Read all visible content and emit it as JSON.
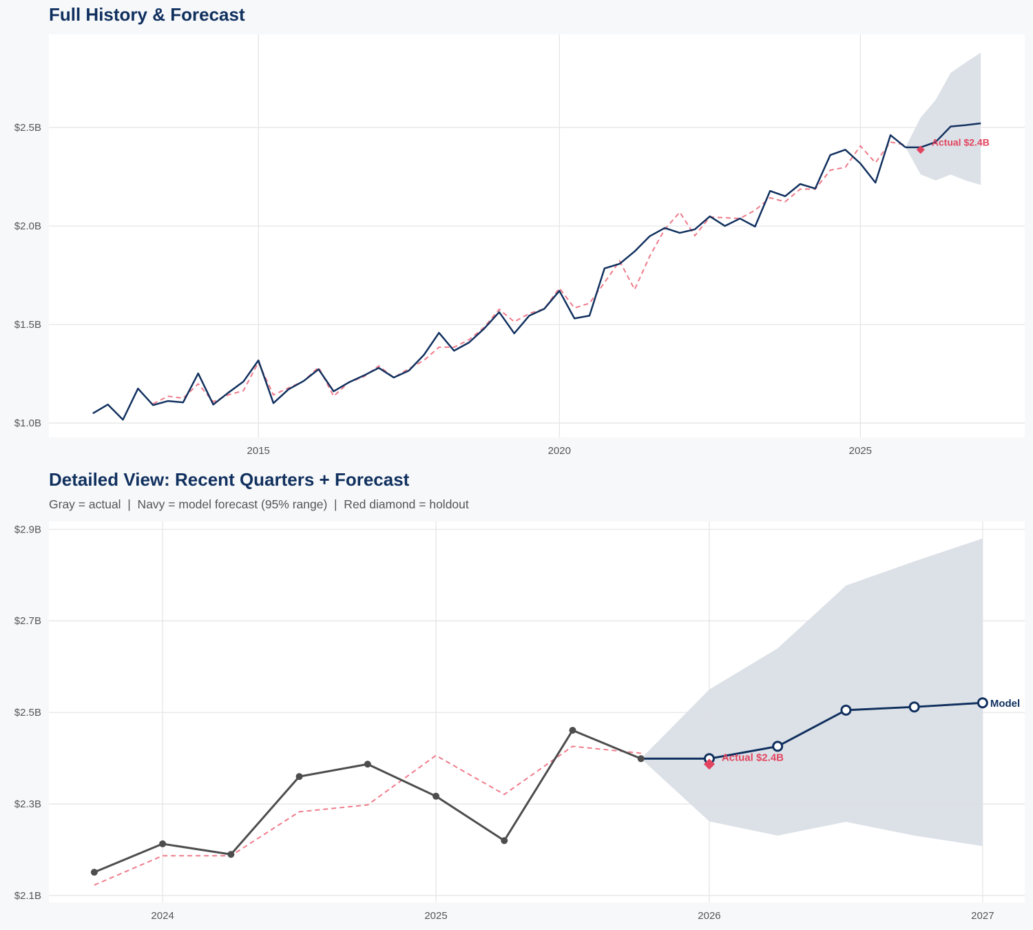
{
  "colors": {
    "navy": "#10305e",
    "actual_gray": "#4d4d4d",
    "fitted_red": "#ef7a8a",
    "holdout_red": "#e2445f",
    "band": "#dadfe6",
    "background": "#f7f8fa",
    "panel": "#ffffff",
    "grid": "#e3e3e3"
  },
  "chart_data": [
    {
      "type": "line",
      "title": "Full History & Forecast",
      "xlim": [
        2011.52,
        2027.73
      ],
      "ylim": [
        0.927,
        2.972
      ],
      "x_ticks": [
        2015,
        2020,
        2025
      ],
      "x_tick_labels": [
        "2015",
        "2020",
        "2025"
      ],
      "y_ticks": [
        1.0,
        1.5,
        2.0,
        2.5
      ],
      "y_tick_labels": [
        "$1.0B",
        "$1.5B",
        "$2.0B",
        "$2.5B"
      ],
      "grid": true,
      "actual": {
        "x": [
          2012.25,
          2012.5,
          2012.75,
          2013.0,
          2013.25,
          2013.5,
          2013.75,
          2014.0,
          2014.25,
          2014.5,
          2014.75,
          2015.0,
          2015.25,
          2015.5,
          2015.75,
          2016.0,
          2016.25,
          2016.5,
          2016.75,
          2017.0,
          2017.25,
          2017.5,
          2017.75,
          2018.0,
          2018.25,
          2018.5,
          2018.75,
          2019.0,
          2019.25,
          2019.5,
          2019.75,
          2020.0,
          2020.25,
          2020.5,
          2020.75,
          2021.0,
          2021.25,
          2021.5,
          2021.75,
          2022.0,
          2022.25,
          2022.5,
          2022.75,
          2023.0,
          2023.25,
          2023.5,
          2023.75,
          2024.0,
          2024.25,
          2024.5,
          2024.75,
          2025.0,
          2025.25,
          2025.5,
          2025.75
        ],
        "y": [
          1.049,
          1.094,
          1.017,
          1.175,
          1.091,
          1.112,
          1.105,
          1.252,
          1.094,
          1.154,
          1.21,
          1.318,
          1.101,
          1.171,
          1.213,
          1.273,
          1.161,
          1.206,
          1.241,
          1.28,
          1.231,
          1.266,
          1.346,
          1.458,
          1.367,
          1.409,
          1.479,
          1.563,
          1.455,
          1.545,
          1.58,
          1.671,
          1.531,
          1.545,
          1.785,
          1.808,
          1.871,
          1.948,
          1.99,
          1.965,
          1.983,
          2.049,
          2.0,
          2.038,
          1.997,
          2.178,
          2.151,
          2.213,
          2.19,
          2.36,
          2.387,
          2.317,
          2.22,
          2.461,
          2.399
        ]
      },
      "fitted": {
        "x": [
          2013.25,
          2013.5,
          2013.75,
          2014.0,
          2014.25,
          2014.5,
          2014.75,
          2015.0,
          2015.25,
          2015.5,
          2015.75,
          2016.0,
          2016.25,
          2016.5,
          2016.75,
          2017.0,
          2017.25,
          2017.5,
          2017.75,
          2018.0,
          2018.25,
          2018.5,
          2018.75,
          2019.0,
          2019.25,
          2019.5,
          2019.75,
          2020.0,
          2020.25,
          2020.5,
          2020.75,
          2021.0,
          2021.25,
          2021.5,
          2021.75,
          2022.0,
          2022.25,
          2022.5,
          2022.75,
          2023.0,
          2023.25,
          2023.5,
          2023.75,
          2024.0,
          2024.25,
          2024.5,
          2024.75,
          2025.0,
          2025.25,
          2025.5,
          2025.75
        ],
        "y": [
          1.098,
          1.136,
          1.126,
          1.199,
          1.108,
          1.143,
          1.164,
          1.308,
          1.143,
          1.178,
          1.213,
          1.283,
          1.136,
          1.206,
          1.235,
          1.29,
          1.231,
          1.276,
          1.318,
          1.385,
          1.385,
          1.423,
          1.486,
          1.577,
          1.514,
          1.556,
          1.58,
          1.685,
          1.584,
          1.608,
          1.713,
          1.822,
          1.678,
          1.846,
          1.983,
          2.07,
          1.951,
          2.045,
          2.042,
          2.038,
          2.08,
          2.143,
          2.123,
          2.187,
          2.187,
          2.283,
          2.298,
          2.406,
          2.321,
          2.426,
          2.411
        ]
      },
      "forecast": {
        "x": [
          2025.75,
          2026.0,
          2026.25,
          2026.5,
          2026.75,
          2027.0
        ],
        "y": [
          2.399,
          2.399,
          2.426,
          2.505,
          2.512,
          2.521
        ],
        "lower": [
          2.399,
          2.262,
          2.231,
          2.261,
          2.231,
          2.208
        ],
        "upper": [
          2.399,
          2.55,
          2.64,
          2.777,
          2.83,
          2.88
        ]
      },
      "holdout": {
        "x": 2026.0,
        "y": 2.387,
        "label": "Actual $2.4B"
      }
    },
    {
      "type": "line",
      "title": "Detailed View: Recent Quarters + Forecast",
      "subtitle": "Gray = actual  |  Navy = model forecast (95% range)  |  Red diamond = holdout",
      "xlim": [
        2023.584,
        2027.154
      ],
      "ylim": [
        2.085,
        2.917
      ],
      "x_ticks": [
        2024,
        2025,
        2026,
        2027
      ],
      "x_tick_labels": [
        "2024",
        "2025",
        "2026",
        "2027"
      ],
      "y_ticks": [
        2.1,
        2.3,
        2.5,
        2.7,
        2.9
      ],
      "y_tick_labels": [
        "$2.1B",
        "$2.3B",
        "$2.5B",
        "$2.7B",
        "$2.9B"
      ],
      "grid": true,
      "actual": {
        "x": [
          2023.75,
          2024.0,
          2024.25,
          2024.5,
          2024.75,
          2025.0,
          2025.25,
          2025.5,
          2025.75
        ],
        "y": [
          2.151,
          2.213,
          2.19,
          2.36,
          2.387,
          2.317,
          2.22,
          2.461,
          2.399
        ]
      },
      "fitted": {
        "x": [
          2023.75,
          2024.0,
          2024.25,
          2024.5,
          2024.75,
          2025.0,
          2025.25,
          2025.5,
          2025.75
        ],
        "y": [
          2.123,
          2.187,
          2.187,
          2.283,
          2.298,
          2.406,
          2.321,
          2.426,
          2.411
        ]
      },
      "forecast": {
        "x": [
          2025.75,
          2026.0,
          2026.25,
          2026.5,
          2026.75,
          2027.0
        ],
        "y": [
          2.399,
          2.399,
          2.426,
          2.505,
          2.512,
          2.521
        ],
        "lower": [
          2.399,
          2.262,
          2.231,
          2.261,
          2.231,
          2.208
        ],
        "upper": [
          2.399,
          2.55,
          2.64,
          2.777,
          2.83,
          2.88
        ],
        "label": "Model"
      },
      "holdout": {
        "x": 2026.0,
        "y": 2.387,
        "label": "Actual $2.4B"
      }
    }
  ]
}
